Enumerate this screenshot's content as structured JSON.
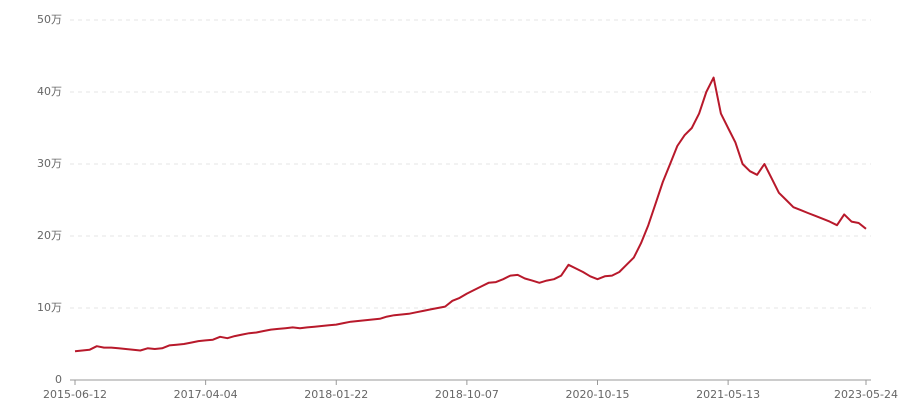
{
  "chart_data": {
    "type": "line",
    "categories": [
      "2015-06-12",
      null,
      null,
      null,
      null,
      null,
      null,
      null,
      null,
      null,
      null,
      null,
      null,
      null,
      null,
      null,
      null,
      null,
      "2017-04-04",
      null,
      null,
      null,
      null,
      null,
      null,
      null,
      null,
      null,
      null,
      null,
      null,
      null,
      null,
      null,
      null,
      null,
      "2018-01-22",
      null,
      null,
      null,
      null,
      null,
      null,
      null,
      null,
      null,
      null,
      null,
      null,
      null,
      null,
      null,
      null,
      null,
      "2018-10-07",
      null,
      null,
      null,
      null,
      null,
      null,
      null,
      null,
      null,
      null,
      null,
      null,
      null,
      null,
      null,
      null,
      null,
      "2020-10-15",
      null,
      null,
      null,
      null,
      null,
      null,
      null,
      null,
      null,
      null,
      null,
      null,
      null,
      null,
      null,
      null,
      null,
      "2021-05-13",
      null,
      null,
      null,
      null,
      null,
      null,
      null,
      null,
      null,
      null,
      null,
      null,
      null,
      null,
      null,
      null,
      null,
      null,
      "2023-05-24"
    ],
    "series": [
      {
        "color": "#b8192b",
        "values": [
          4.0,
          4.1,
          4.2,
          4.7,
          4.5,
          4.5,
          4.4,
          4.3,
          4.2,
          4.1,
          4.4,
          4.3,
          4.4,
          4.8,
          4.9,
          5.0,
          5.2,
          5.4,
          5.5,
          5.6,
          6.0,
          5.8,
          6.1,
          6.3,
          6.5,
          6.6,
          6.8,
          7.0,
          7.1,
          7.2,
          7.3,
          7.2,
          7.3,
          7.4,
          7.5,
          7.6,
          7.7,
          7.9,
          8.1,
          8.2,
          8.3,
          8.4,
          8.5,
          8.8,
          9.0,
          9.1,
          9.2,
          9.4,
          9.6,
          9.8,
          10.0,
          10.2,
          11.0,
          11.4,
          12.0,
          12.5,
          13.0,
          13.5,
          13.6,
          14.0,
          14.5,
          14.6,
          14.1,
          13.8,
          13.5,
          13.8,
          14.0,
          14.5,
          16.0,
          15.5,
          15.0,
          14.4,
          14.0,
          14.4,
          14.5,
          15.0,
          16.0,
          17.0,
          19.0,
          21.5,
          24.5,
          27.5,
          30.0,
          32.5,
          34.0,
          35.0,
          37.0,
          40.0,
          42.0,
          37.0,
          35.0,
          33.0,
          30.0,
          29.0,
          28.5,
          30.0,
          28.0,
          26.0,
          25.0,
          24.0,
          23.6,
          23.2,
          22.8,
          22.4,
          22.0,
          21.5,
          23.0,
          22.0,
          21.8,
          21.0
        ]
      }
    ],
    "ylim": [
      0,
      50
    ],
    "yticks": [
      0,
      {
        "value": 10,
        "label": "10万"
      },
      {
        "value": 20,
        "label": "20万"
      },
      {
        "value": 30,
        "label": "30万"
      },
      {
        "value": 40,
        "label": "40万"
      },
      {
        "value": 50,
        "label": "50万"
      }
    ],
    "grid": true
  }
}
